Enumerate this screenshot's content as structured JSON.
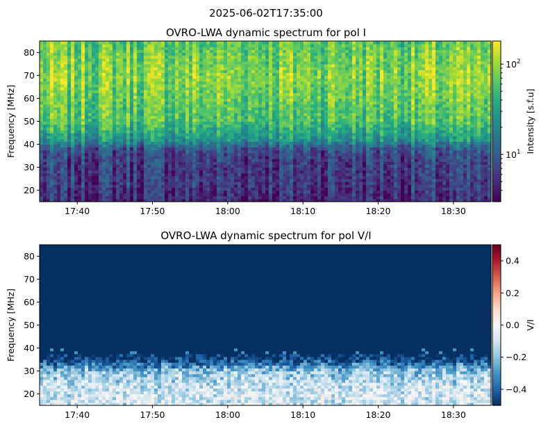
{
  "suptitle": "2025-06-02T17:35:00",
  "chart_data": [
    {
      "type": "heatmap",
      "title": "OVRO-LWA dynamic spectrum for pol I",
      "xlabel": "",
      "ylabel": "Frequency [MHz]",
      "x_ticks": [
        "17:40",
        "17:50",
        "18:00",
        "18:10",
        "18:20",
        "18:30"
      ],
      "xlim": [
        "17:35",
        "18:35"
      ],
      "y_ticks": [
        20,
        30,
        40,
        50,
        60,
        70,
        80
      ],
      "ylim": [
        15,
        85
      ],
      "colormap": "viridis",
      "colorbar": {
        "label": "Intensity [s.f.u]",
        "scale": "log",
        "range": [
          3,
          180
        ],
        "ticks": [
          {
            "value": 10,
            "base": "10",
            "exp": "1"
          },
          {
            "value": 100,
            "base": "10",
            "exp": "2"
          }
        ]
      },
      "profile": {
        "description_freq_mhz": [
          15,
          20,
          25,
          30,
          35,
          38,
          42,
          50,
          60,
          70,
          85
        ],
        "log10_intensity": [
          0.7,
          0.75,
          0.8,
          0.8,
          0.85,
          0.95,
          1.4,
          1.75,
          1.85,
          1.95,
          1.8
        ]
      }
    },
    {
      "type": "heatmap",
      "title": "OVRO-LWA dynamic spectrum for pol V/I",
      "xlabel": "",
      "ylabel": "Frequency [MHz]",
      "x_ticks": [
        "17:40",
        "17:50",
        "18:00",
        "18:10",
        "18:20",
        "18:30"
      ],
      "xlim": [
        "17:35",
        "18:35"
      ],
      "y_ticks": [
        20,
        30,
        40,
        50,
        60,
        70,
        80
      ],
      "ylim": [
        15,
        85
      ],
      "colormap": "RdBu_r",
      "colorbar": {
        "label": "V/I",
        "scale": "linear",
        "range": [
          -0.5,
          0.5
        ],
        "ticks": [
          {
            "value": 0.4,
            "text": "0.4"
          },
          {
            "value": 0.2,
            "text": "0.2"
          },
          {
            "value": 0.0,
            "text": "0.0"
          },
          {
            "value": -0.2,
            "text": "−0.2"
          },
          {
            "value": -0.4,
            "text": "−0.4"
          }
        ]
      },
      "profile": {
        "description_freq_mhz": [
          15,
          20,
          25,
          30,
          33,
          36,
          85
        ],
        "v_over_i": [
          -0.1,
          -0.08,
          -0.12,
          -0.2,
          -0.35,
          -0.5,
          -0.5
        ]
      }
    }
  ]
}
